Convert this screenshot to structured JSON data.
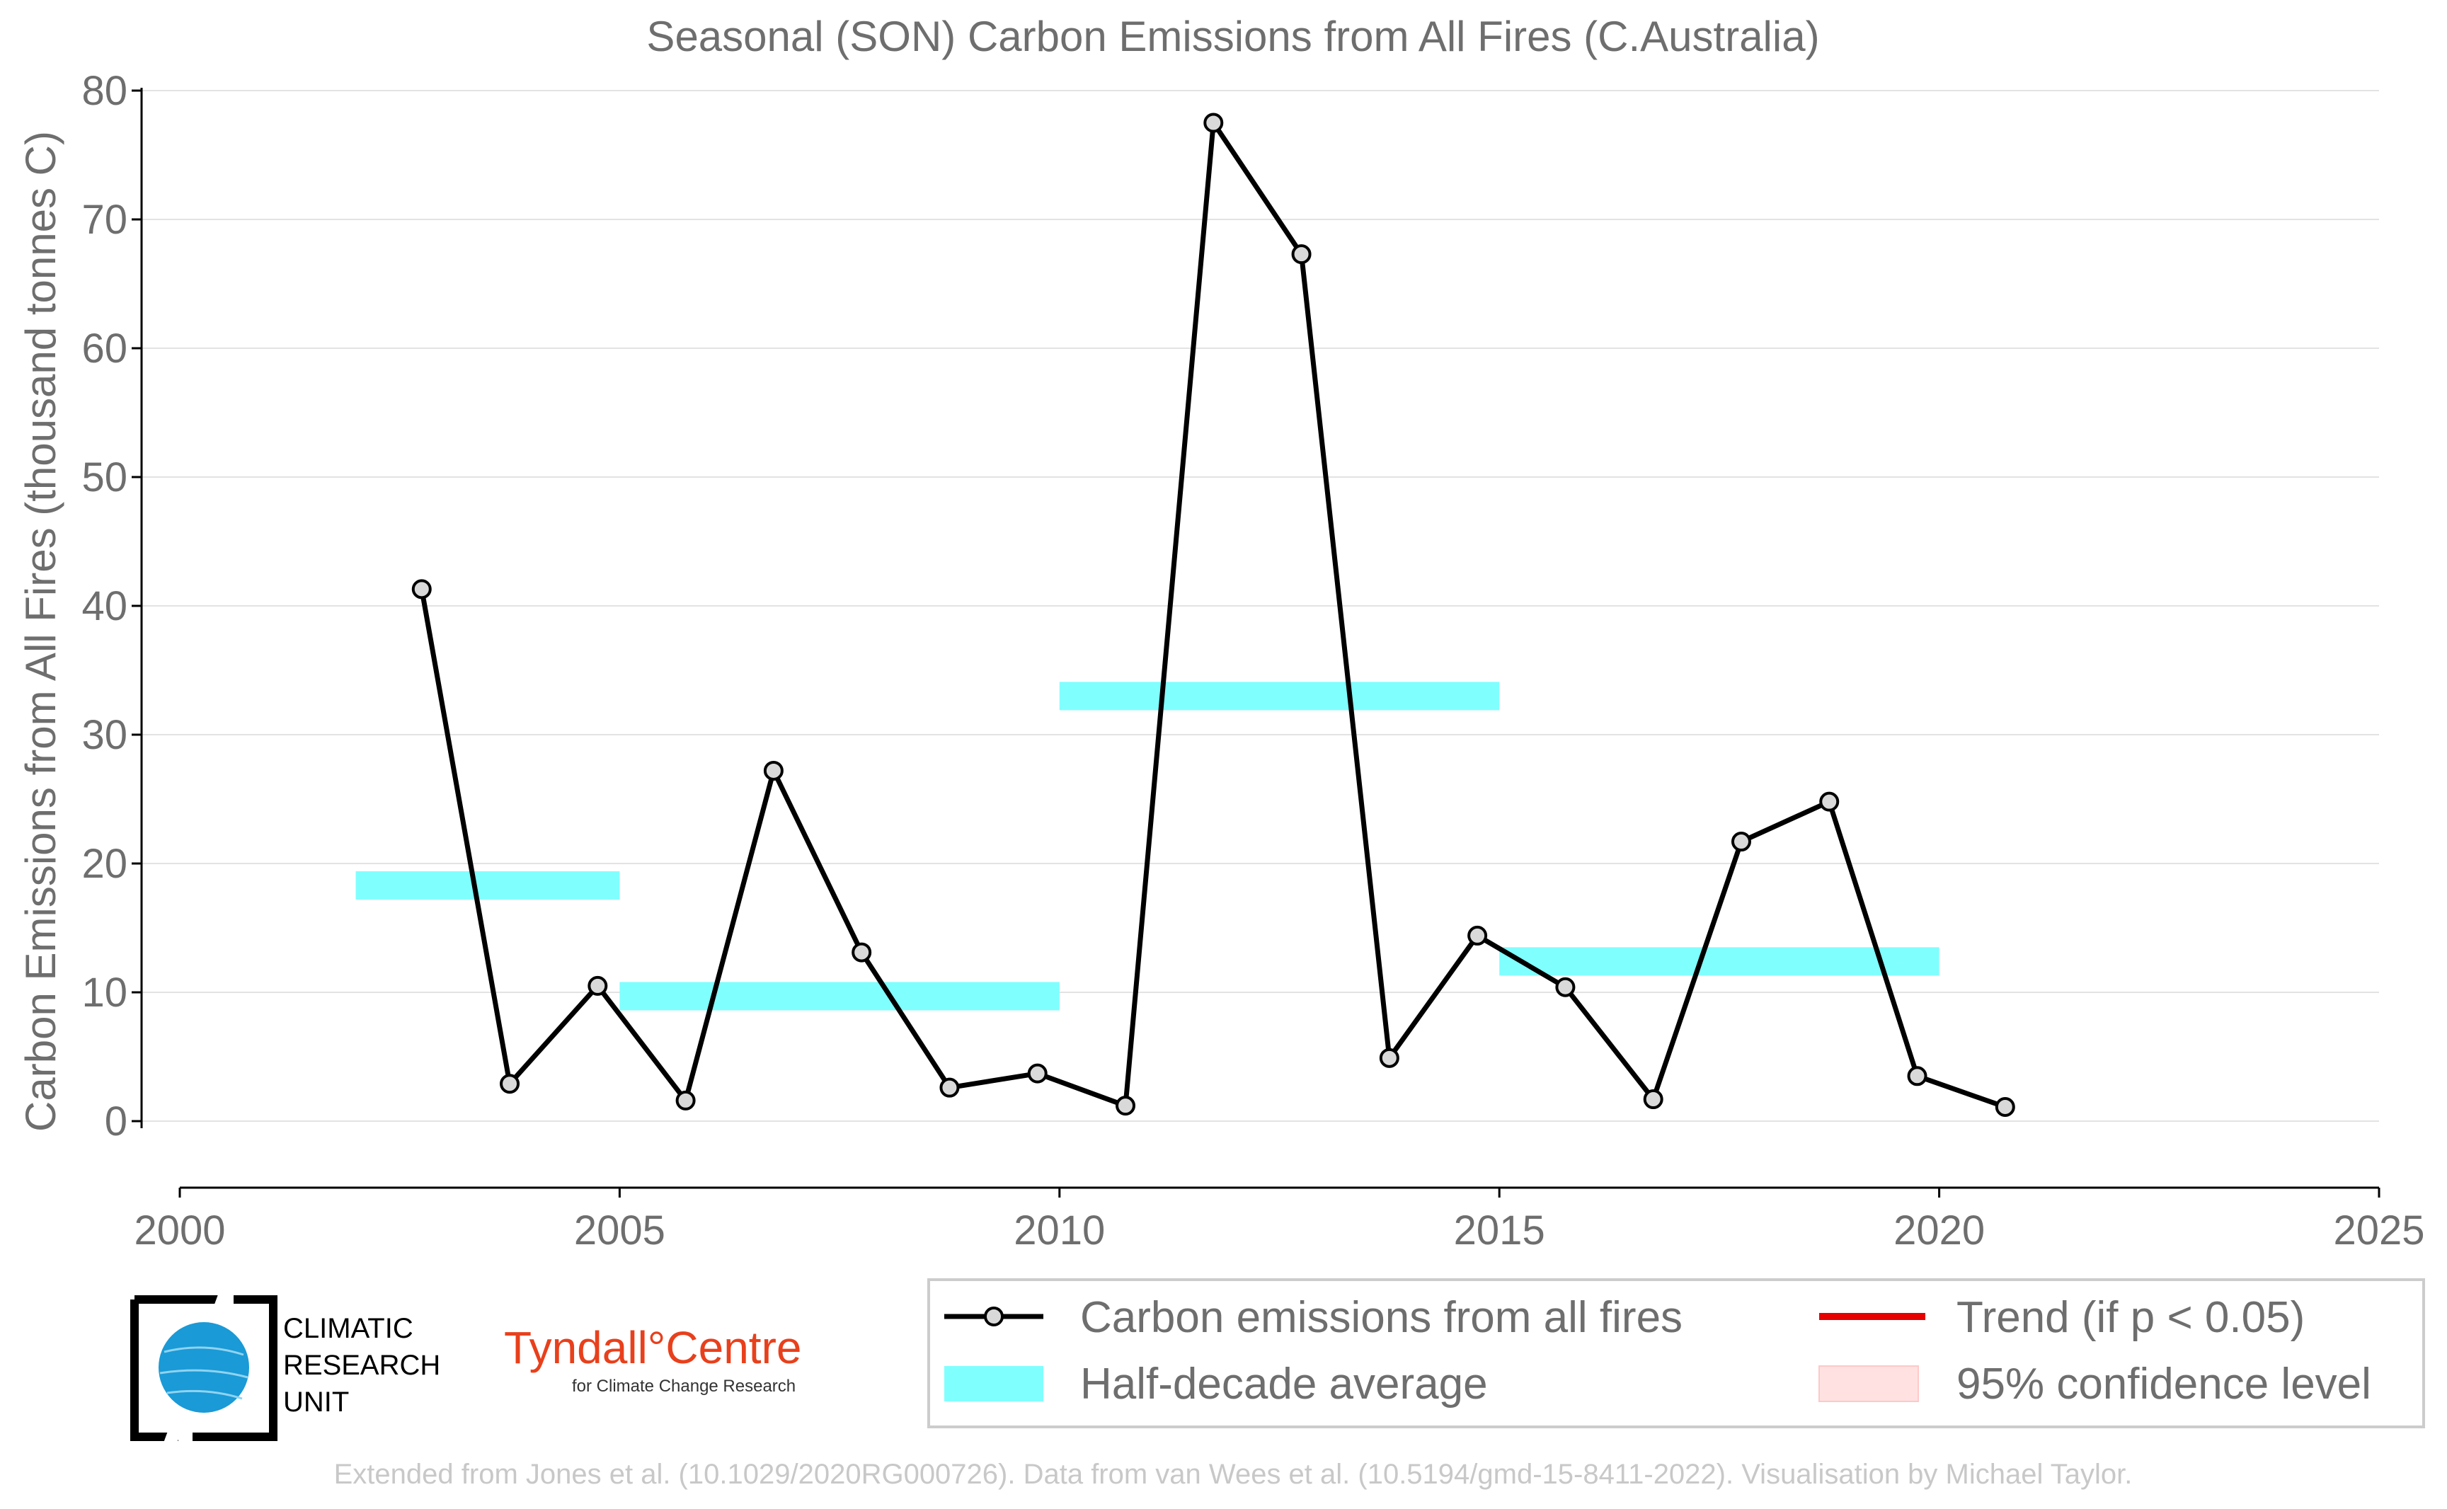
{
  "chart_data": {
    "type": "line",
    "title": "Seasonal (SON) Carbon Emissions from All Fires (C.Australia)",
    "xlabel": "",
    "ylabel": "Carbon Emissions from All Fires (thousand tonnes C)",
    "xlim": [
      2000,
      2025
    ],
    "ylim": [
      -5,
      80
    ],
    "x_ticks": [
      2000,
      2005,
      2010,
      2015,
      2020,
      2025
    ],
    "y_ticks": [
      0,
      10,
      20,
      30,
      40,
      50,
      60,
      70,
      80
    ],
    "grid": "horizontal",
    "legend_position": "bottom-right",
    "series": [
      {
        "name": "Carbon emissions from all fires",
        "color": "#000000",
        "x": [
          2002.75,
          2003.75,
          2004.75,
          2005.75,
          2006.75,
          2007.75,
          2008.75,
          2009.75,
          2010.75,
          2011.75,
          2012.75,
          2013.75,
          2014.75,
          2015.75,
          2016.75,
          2017.75,
          2018.75,
          2019.75,
          2020.75
        ],
        "values": [
          41.3,
          2.9,
          10.5,
          1.6,
          27.2,
          13.1,
          2.6,
          3.7,
          1.2,
          77.5,
          67.3,
          4.9,
          14.4,
          10.4,
          1.7,
          21.7,
          24.8,
          3.5,
          1.1
        ]
      }
    ],
    "half_decade_average": {
      "name": "Half-decade average",
      "color": "#80ffff",
      "segments": [
        {
          "x_start": 2002,
          "x_end": 2005,
          "value": 18.3
        },
        {
          "x_start": 2005,
          "x_end": 2010,
          "value": 9.7
        },
        {
          "x_start": 2010,
          "x_end": 2015,
          "value": 33.0
        },
        {
          "x_start": 2015,
          "x_end": 2020,
          "value": 12.4
        }
      ]
    },
    "legend": [
      {
        "label": "Carbon emissions from all fires",
        "kind": "line-marker",
        "color": "#000000"
      },
      {
        "label": "Trend (if p < 0.05)",
        "kind": "line",
        "color": "#e60000"
      },
      {
        "label": "Half-decade average",
        "kind": "band",
        "color": "#80ffff"
      },
      {
        "label": "95% confidence level",
        "kind": "band",
        "color": "#ffe1e1"
      }
    ]
  },
  "logos": {
    "cru_text": [
      "CLIMATIC",
      "RESEARCH",
      "UNIT"
    ],
    "tyndall_main": "Tyndall°Centre",
    "tyndall_sub": "for Climate Change Research"
  },
  "footer": "Extended from Jones et al. (10.1029/2020RG000726). Data from van Wees et al. (10.5194/gmd-15-8411-2022). Visualisation by Michael Taylor."
}
